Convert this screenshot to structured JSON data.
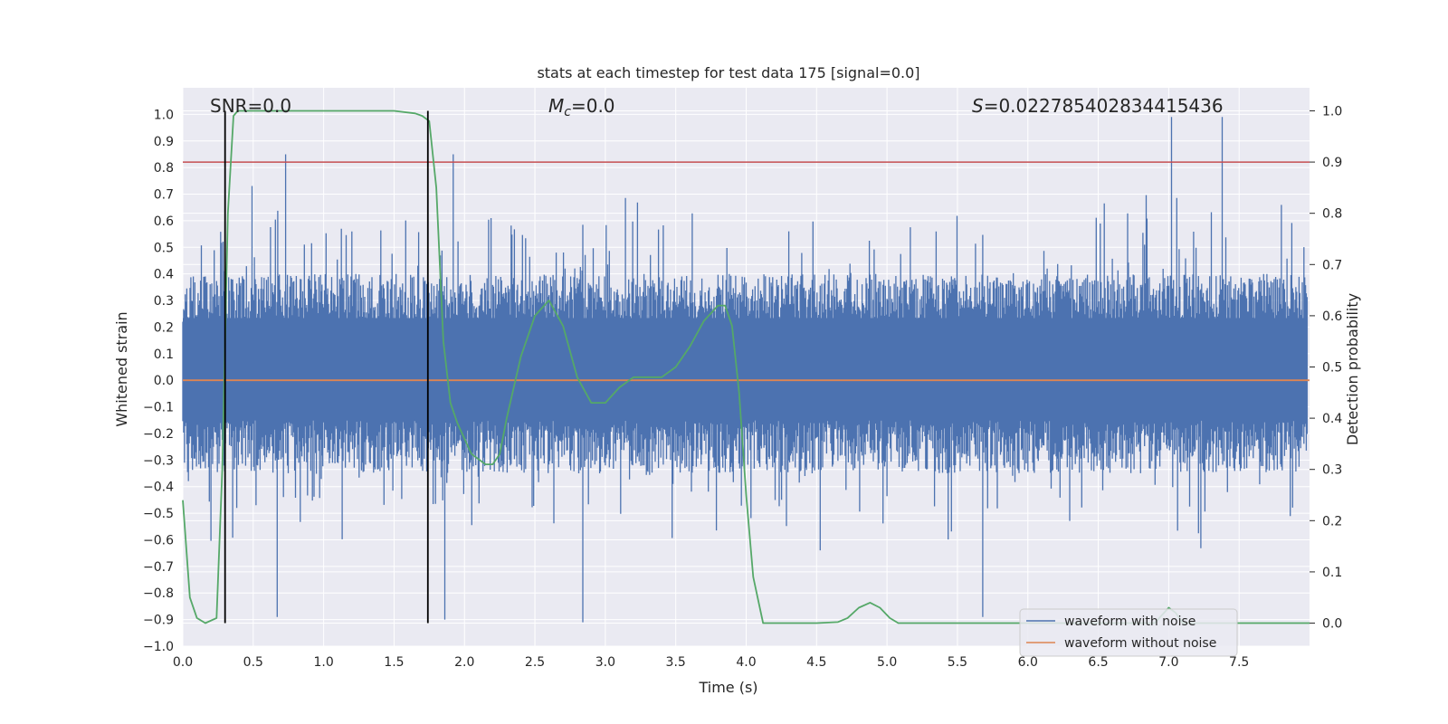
{
  "chart_data": {
    "type": "line",
    "title": "stats at each timestep for test data 175 [signal=0.0]",
    "xlabel": "Time (s)",
    "ylabel": "Whitened strain",
    "y2label": "Detection probability",
    "xlim": [
      0.0,
      8.0
    ],
    "ylim": [
      -1.0,
      1.1
    ],
    "y2lim": [
      -0.045,
      1.045
    ],
    "x_ticks": [
      0.0,
      0.5,
      1.0,
      1.5,
      2.0,
      2.5,
      3.0,
      3.5,
      4.0,
      4.5,
      5.0,
      5.5,
      6.0,
      6.5,
      7.0,
      7.5
    ],
    "x_tick_labels": [
      "0.0",
      "0.5",
      "1.0",
      "1.5",
      "2.0",
      "2.5",
      "3.0",
      "3.5",
      "4.0",
      "4.5",
      "5.0",
      "5.5",
      "6.0",
      "6.5",
      "7.0",
      "7.5"
    ],
    "y_ticks": [
      -1.0,
      -0.9,
      -0.8,
      -0.7,
      -0.6,
      -0.5,
      -0.4,
      -0.3,
      -0.2,
      -0.1,
      0.0,
      0.1,
      0.2,
      0.3,
      0.4,
      0.5,
      0.6,
      0.7,
      0.8,
      0.9,
      1.0
    ],
    "y_tick_labels": [
      "−1.0",
      "−0.9",
      "−0.8",
      "−0.7",
      "−0.6",
      "−0.5",
      "−0.4",
      "−0.3",
      "−0.2",
      "−0.1",
      "0.0",
      "0.1",
      "0.2",
      "0.3",
      "0.4",
      "0.5",
      "0.6",
      "0.7",
      "0.8",
      "0.9",
      "1.0"
    ],
    "y2_ticks": [
      0.0,
      0.1,
      0.2,
      0.3,
      0.4,
      0.5,
      0.6,
      0.7,
      0.8,
      0.9,
      1.0
    ],
    "y2_tick_labels": [
      "0.0",
      "0.1",
      "0.2",
      "0.3",
      "0.4",
      "0.5",
      "0.6",
      "0.7",
      "0.8",
      "0.9",
      "1.0"
    ],
    "annotations": {
      "snr": "SNR=0.0",
      "mc_symbol": "M",
      "mc_sub": "c",
      "mc_value": "=0.0",
      "s_symbol": "S",
      "s_value": "=0.022785402834415436"
    },
    "legend": {
      "location": "lower-right",
      "entries": [
        "waveform with noise",
        "waveform without noise"
      ]
    },
    "colors": {
      "noise": "#4c72b0",
      "clean": "#dd8452",
      "probability": "#55a868",
      "threshold": "#c44e52",
      "markers": "#000000",
      "background": "#eaeaf2",
      "grid": "#ffffff"
    },
    "threshold_probability": 0.9,
    "vertical_markers_s": [
      0.3,
      1.74
    ],
    "noise_envelope": {
      "typical_upper": 0.45,
      "typical_lower": -0.42,
      "notable_peaks": [
        {
          "t": 7.02,
          "v": 0.99
        },
        {
          "t": 7.38,
          "v": 0.99
        },
        {
          "t": 0.73,
          "v": 0.85
        },
        {
          "t": 1.92,
          "v": 0.85
        },
        {
          "t": 0.67,
          "v": -0.89
        },
        {
          "t": 1.86,
          "v": -0.9
        },
        {
          "t": 2.84,
          "v": -0.91
        },
        {
          "t": 5.68,
          "v": -0.89
        }
      ]
    },
    "series": [
      {
        "name": "waveform with noise",
        "axis": "left",
        "x": [
          0.0,
          8.0
        ],
        "y": [
          0.0,
          0.0
        ]
      },
      {
        "name": "waveform without noise",
        "axis": "left",
        "x": [
          0.0,
          8.0
        ],
        "y": [
          0.0,
          0.0
        ]
      },
      {
        "name": "detection probability",
        "axis": "right",
        "x": [
          0.0,
          0.05,
          0.1,
          0.16,
          0.24,
          0.28,
          0.32,
          0.36,
          0.39,
          0.45,
          1.0,
          1.5,
          1.65,
          1.7,
          1.75,
          1.8,
          1.85,
          1.9,
          1.95,
          2.05,
          2.15,
          2.2,
          2.25,
          2.3,
          2.4,
          2.5,
          2.6,
          2.7,
          2.8,
          2.9,
          3.0,
          3.1,
          3.2,
          3.3,
          3.4,
          3.5,
          3.6,
          3.7,
          3.8,
          3.85,
          3.9,
          3.95,
          4.0,
          4.05,
          4.12,
          4.2,
          4.5,
          4.65,
          4.72,
          4.8,
          4.88,
          4.95,
          5.02,
          5.08,
          5.2,
          6.0,
          6.9,
          7.0,
          7.05,
          7.1,
          8.0
        ],
        "y": [
          0.24,
          0.05,
          0.01,
          0.0,
          0.01,
          0.3,
          0.8,
          0.99,
          1.0,
          1.0,
          1.0,
          1.0,
          0.995,
          0.99,
          0.98,
          0.85,
          0.55,
          0.43,
          0.39,
          0.33,
          0.31,
          0.31,
          0.33,
          0.4,
          0.52,
          0.6,
          0.63,
          0.58,
          0.48,
          0.43,
          0.43,
          0.46,
          0.48,
          0.48,
          0.48,
          0.5,
          0.54,
          0.59,
          0.62,
          0.62,
          0.58,
          0.45,
          0.25,
          0.09,
          0.0,
          0.0,
          0.0,
          0.002,
          0.01,
          0.03,
          0.04,
          0.03,
          0.01,
          0.0,
          0.0,
          0.0,
          0.0,
          0.03,
          0.02,
          0.0,
          0.0
        ]
      }
    ]
  }
}
